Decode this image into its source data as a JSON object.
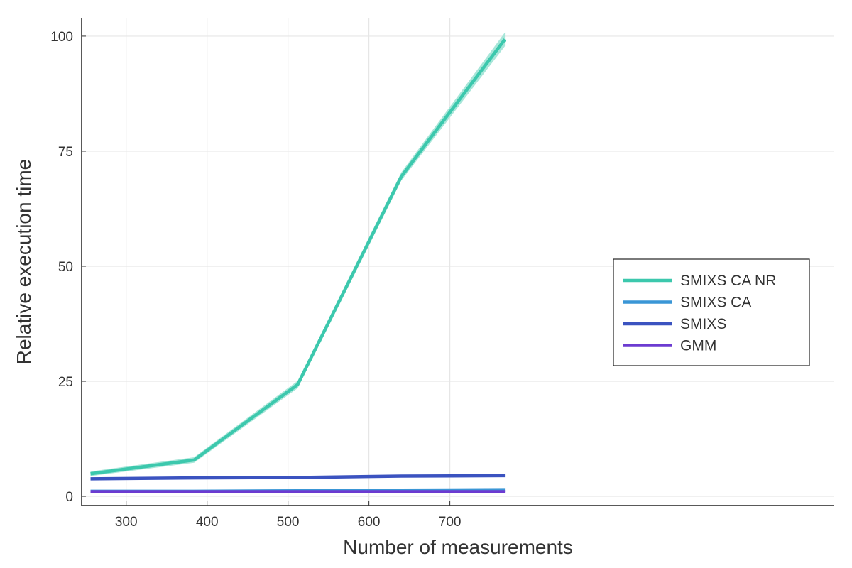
{
  "chart_data": {
    "type": "line",
    "title": "",
    "xlabel": "Number of measurements",
    "ylabel": "Relative execution time",
    "xlim": [
      245,
      1175
    ],
    "ylim": [
      -2,
      104
    ],
    "xticks": [
      300,
      400,
      500,
      600,
      700
    ],
    "yticks": [
      0,
      25,
      50,
      75,
      100
    ],
    "grid": true,
    "legend_position": "right",
    "x": [
      256,
      384,
      512,
      640,
      768
    ],
    "series": [
      {
        "name": "SMIXS CA NR",
        "color": "#3cc8ad",
        "band_color": "#a8e6d9",
        "values": [
          4.9,
          7.9,
          24.3,
          69.5,
          99.3
        ],
        "band": [
          0.5,
          0.6,
          0.8,
          0.9,
          1.5
        ]
      },
      {
        "name": "SMIXS CA",
        "color": "#3a96d6",
        "values": [
          1.1,
          1.1,
          1.2,
          1.2,
          1.3
        ],
        "band": [
          0.1,
          0.1,
          0.1,
          0.1,
          0.1
        ]
      },
      {
        "name": "SMIXS",
        "color": "#3b53c0",
        "values": [
          3.8,
          4.0,
          4.1,
          4.4,
          4.5
        ],
        "band": [
          0.1,
          0.1,
          0.1,
          0.1,
          0.1
        ]
      },
      {
        "name": "GMM",
        "color": "#6c3bd1",
        "values": [
          1.0,
          1.0,
          1.0,
          1.0,
          1.0
        ],
        "band": [
          0.05,
          0.05,
          0.05,
          0.05,
          0.05
        ]
      }
    ]
  }
}
